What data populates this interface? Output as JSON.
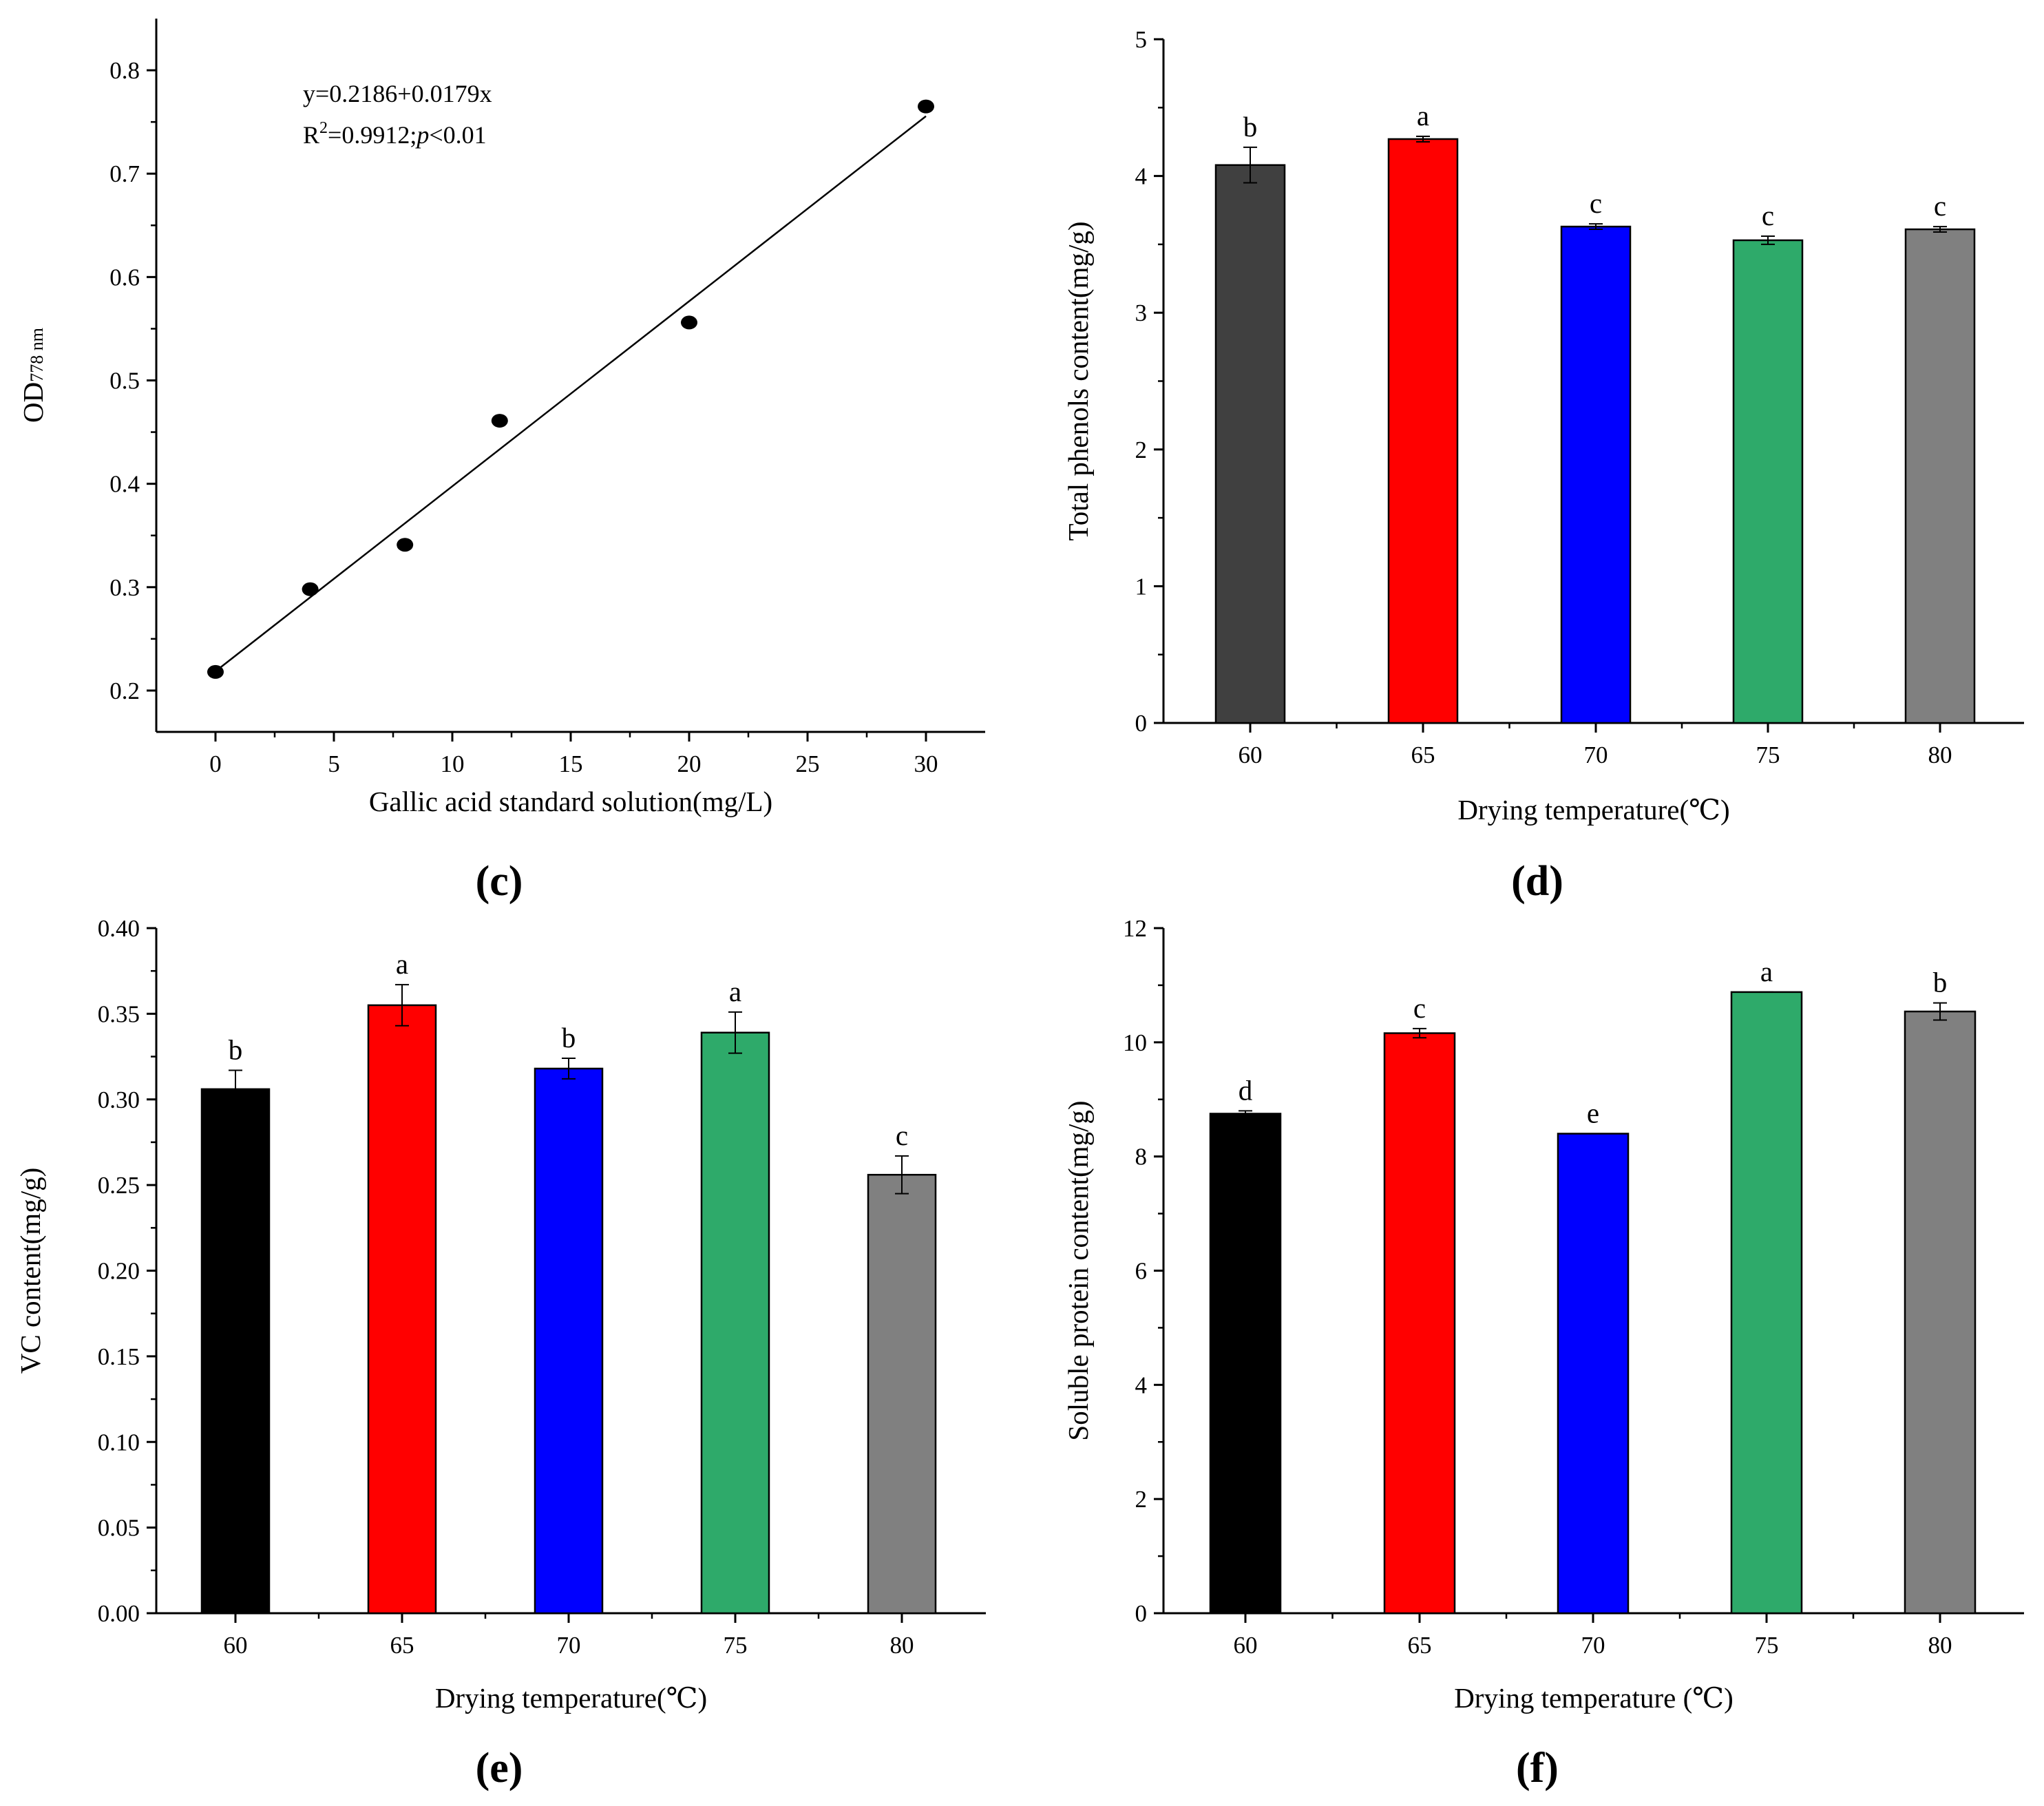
{
  "figure_title": "",
  "colors": {
    "black": "#000000",
    "dark_gray": "#404040",
    "red": "#ff0000",
    "blue": "#0000ff",
    "green": "#2eaa6a",
    "gray": "#808080"
  },
  "chart_data": [
    {
      "id": "c",
      "panel_label": "(c)",
      "type": "scatter",
      "title": "",
      "xlabel": "Gallic acid standard solution(mg/L)",
      "ylabel_main": "OD",
      "ylabel_sub": "778 nm",
      "xlim": [
        -2.5,
        32.5
      ],
      "ylim": [
        0.16,
        0.85
      ],
      "xticks": [
        0,
        5,
        10,
        15,
        20,
        25,
        30
      ],
      "xtick_labels": [
        "0",
        "5",
        "10",
        "15",
        "20",
        "25",
        "30"
      ],
      "yticks": [
        0.2,
        0.3,
        0.4,
        0.5,
        0.6,
        0.7,
        0.8
      ],
      "ytick_labels": [
        "0.2",
        "0.3",
        "0.4",
        "0.5",
        "0.6",
        "0.7",
        "0.8"
      ],
      "points": [
        {
          "x": 0,
          "y": 0.218
        },
        {
          "x": 4,
          "y": 0.298
        },
        {
          "x": 8,
          "y": 0.341
        },
        {
          "x": 12,
          "y": 0.461
        },
        {
          "x": 20,
          "y": 0.556
        },
        {
          "x": 30,
          "y": 0.765
        }
      ],
      "fit": {
        "intercept": 0.2186,
        "slope": 0.0179,
        "x_range": [
          0,
          30
        ]
      },
      "equation_text": "y=0.2186+0.0179x",
      "r2_prefix": "R",
      "r2_sup": "2",
      "r2_value": "=0.9912;",
      "p_symbol": "p",
      "p_rest": "<0.01"
    },
    {
      "id": "d",
      "panel_label": "(d)",
      "type": "bar",
      "title": "",
      "xlabel": "Drying temperature(℃)",
      "ylabel": "Total phenols content(mg/g)",
      "categories": [
        "60",
        "65",
        "70",
        "75",
        "80"
      ],
      "values": [
        4.08,
        4.27,
        3.63,
        3.53,
        3.61
      ],
      "errors": [
        0.13,
        0.02,
        0.02,
        0.03,
        0.02
      ],
      "letters": [
        "b",
        "a",
        "c",
        "c",
        "c"
      ],
      "bar_colors": [
        "#404040",
        "#ff0000",
        "#0000ff",
        "#2eaa6a",
        "#808080"
      ],
      "ylim": [
        0,
        5
      ],
      "yticks": [
        0,
        1,
        2,
        3,
        4,
        5
      ],
      "ytick_labels": [
        "0",
        "1",
        "2",
        "3",
        "4",
        "5"
      ]
    },
    {
      "id": "e",
      "panel_label": "(e)",
      "type": "bar",
      "title": "",
      "xlabel": "Drying temperature(℃)",
      "ylabel": "VC content(mg/g)",
      "categories": [
        "60",
        "65",
        "70",
        "75",
        "80"
      ],
      "values": [
        0.306,
        0.355,
        0.318,
        0.339,
        0.256
      ],
      "errors": [
        0.011,
        0.012,
        0.006,
        0.012,
        0.011
      ],
      "letters": [
        "b",
        "a",
        "b",
        "a",
        "c"
      ],
      "bar_colors": [
        "#000000",
        "#ff0000",
        "#0000ff",
        "#2eaa6a",
        "#808080"
      ],
      "ylim": [
        0,
        0.4
      ],
      "yticks": [
        0,
        0.05,
        0.1,
        0.15,
        0.2,
        0.25,
        0.3,
        0.35,
        0.4
      ],
      "ytick_labels": [
        "0.00",
        "0.05",
        "0.10",
        "0.15",
        "0.20",
        "0.25",
        "0.30",
        "0.35",
        "0.40"
      ]
    },
    {
      "id": "f",
      "panel_label": "(f)",
      "type": "bar",
      "title": "",
      "xlabel": "Drying temperature (℃)",
      "ylabel": "Soluble protein content(mg/g)",
      "categories": [
        "60",
        "65",
        "70",
        "75",
        "80"
      ],
      "values": [
        8.75,
        10.16,
        8.4,
        10.88,
        10.54
      ],
      "errors": [
        0.05,
        0.08,
        0.0,
        0.0,
        0.15
      ],
      "letters": [
        "d",
        "c",
        "e",
        "a",
        "b"
      ],
      "bar_colors": [
        "#000000",
        "#ff0000",
        "#0000ff",
        "#2eaa6a",
        "#808080"
      ],
      "ylim": [
        0,
        12
      ],
      "yticks": [
        0,
        2,
        4,
        6,
        8,
        10,
        12
      ],
      "ytick_labels": [
        "0",
        "2",
        "4",
        "6",
        "8",
        "10",
        "12"
      ]
    }
  ]
}
